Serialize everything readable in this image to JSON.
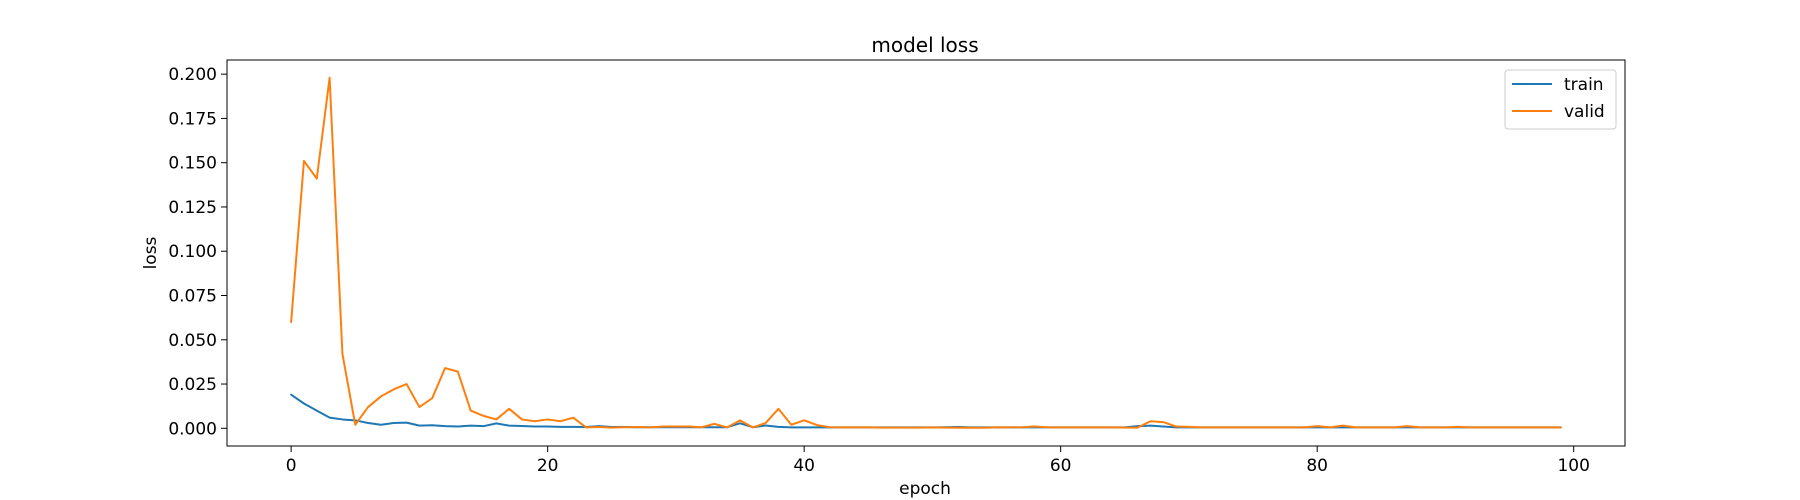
{
  "chart_data": {
    "type": "line",
    "title": "model loss",
    "xlabel": "epoch",
    "ylabel": "loss",
    "xlim": [
      -5,
      104
    ],
    "ylim": [
      -0.01,
      0.208
    ],
    "xticks": [
      0,
      20,
      40,
      60,
      80,
      100
    ],
    "xtick_labels": [
      "0",
      "20",
      "40",
      "60",
      "80",
      "100"
    ],
    "yticks": [
      0.0,
      0.025,
      0.05,
      0.075,
      0.1,
      0.125,
      0.15,
      0.175,
      0.2
    ],
    "ytick_labels": [
      "0.000",
      "0.025",
      "0.050",
      "0.075",
      "0.100",
      "0.125",
      "0.150",
      "0.175",
      "0.200"
    ],
    "grid": false,
    "legend_position": "top-right",
    "series": [
      {
        "name": "train",
        "color": "#1f77b4",
        "values": [
          0.019,
          0.014,
          0.01,
          0.006,
          0.005,
          0.0045,
          0.003,
          0.002,
          0.003,
          0.0032,
          0.0015,
          0.0017,
          0.0012,
          0.001,
          0.0015,
          0.0012,
          0.0028,
          0.0015,
          0.0013,
          0.001,
          0.001,
          0.0008,
          0.0008,
          0.0007,
          0.0012,
          0.0007,
          0.0007,
          0.0006,
          0.0006,
          0.0006,
          0.0006,
          0.0006,
          0.0006,
          0.0006,
          0.0006,
          0.0028,
          0.0006,
          0.0016,
          0.0008,
          0.0005,
          0.0005,
          0.0005,
          0.0005,
          0.0005,
          0.0005,
          0.0005,
          0.0005,
          0.0005,
          0.0005,
          0.0005,
          0.0005,
          0.0006,
          0.0007,
          0.0005,
          0.0005,
          0.0005,
          0.0005,
          0.0005,
          0.0005,
          0.0005,
          0.0005,
          0.0005,
          0.0005,
          0.0005,
          0.0005,
          0.0005,
          0.0012,
          0.0015,
          0.001,
          0.0005,
          0.0005,
          0.0005,
          0.0005,
          0.0005,
          0.0005,
          0.0005,
          0.0005,
          0.0005,
          0.0005,
          0.0005,
          0.0005,
          0.0005,
          0.0005,
          0.0005,
          0.0005,
          0.0005,
          0.0005,
          0.0005,
          0.0005,
          0.0005,
          0.0005,
          0.0005,
          0.0005,
          0.0005,
          0.0005,
          0.0005,
          0.0005,
          0.0005,
          0.0005,
          0.0005
        ]
      },
      {
        "name": "valid",
        "color": "#ff7f0e",
        "values": [
          0.06,
          0.151,
          0.141,
          0.198,
          0.042,
          0.002,
          0.012,
          0.018,
          0.022,
          0.025,
          0.012,
          0.017,
          0.034,
          0.032,
          0.01,
          0.007,
          0.005,
          0.011,
          0.005,
          0.004,
          0.005,
          0.004,
          0.006,
          0.0005,
          0.0007,
          0.0004,
          0.0006,
          0.0007,
          0.0005,
          0.001,
          0.001,
          0.001,
          0.0006,
          0.0025,
          0.0005,
          0.0045,
          0.0005,
          0.003,
          0.011,
          0.002,
          0.0045,
          0.0018,
          0.0006,
          0.0005,
          0.0005,
          0.0005,
          0.0004,
          0.0004,
          0.0004,
          0.0004,
          0.0005,
          0.0004,
          0.0003,
          0.0003,
          0.0003,
          0.0005,
          0.0005,
          0.0006,
          0.001,
          0.0005,
          0.0005,
          0.0005,
          0.0005,
          0.0005,
          0.0005,
          0.0004,
          0.0004,
          0.004,
          0.0035,
          0.001,
          0.0008,
          0.0005,
          0.0005,
          0.0005,
          0.0005,
          0.0005,
          0.0005,
          0.0005,
          0.0005,
          0.0005,
          0.0012,
          0.0005,
          0.0015,
          0.0005,
          0.0005,
          0.0005,
          0.0005,
          0.0012,
          0.0005,
          0.0005,
          0.0005,
          0.0008,
          0.0005,
          0.0005,
          0.0005,
          0.0005,
          0.0005,
          0.0005,
          0.0005,
          0.0005
        ]
      }
    ]
  }
}
